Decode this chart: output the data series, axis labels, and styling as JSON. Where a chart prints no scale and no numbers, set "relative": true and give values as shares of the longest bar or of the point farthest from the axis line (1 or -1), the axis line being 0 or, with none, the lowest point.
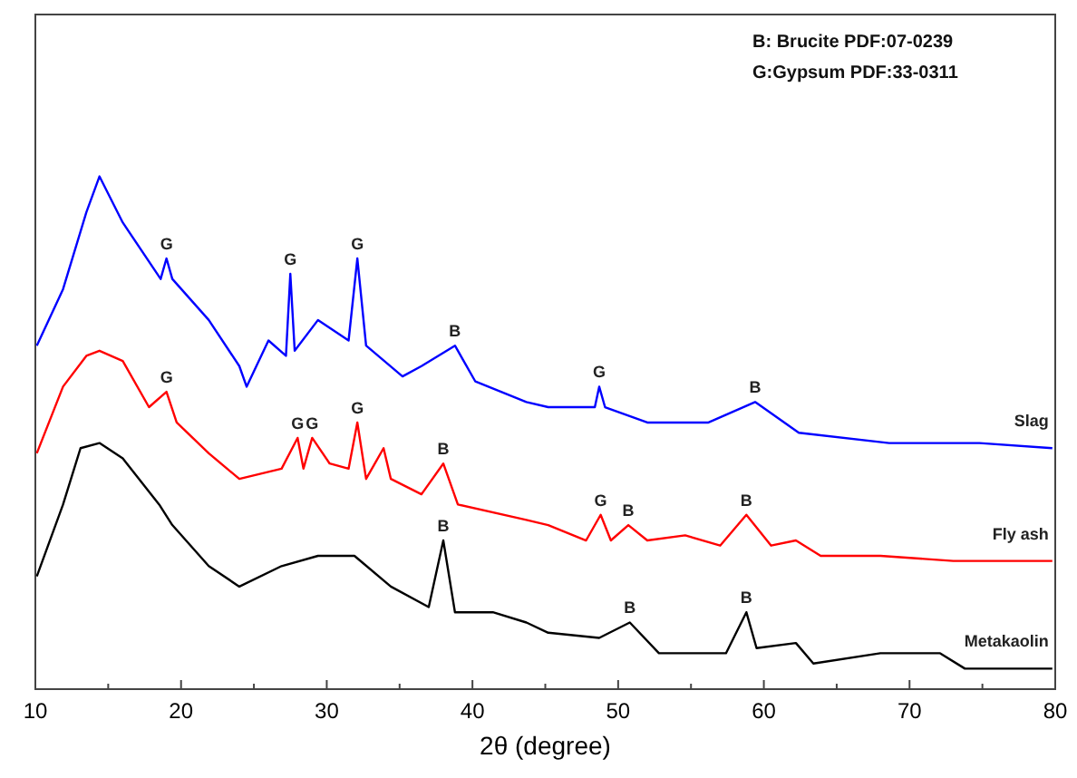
{
  "chart_data": {
    "type": "line",
    "relative": true,
    "xlabel": "2θ (degree)",
    "xlim": [
      10,
      80
    ],
    "xticks": [
      10,
      {
        "value": 15,
        "label": null
      },
      20,
      {
        "value": 25,
        "label": null
      },
      30,
      {
        "value": 35,
        "label": null
      },
      40,
      {
        "value": 45,
        "label": null
      },
      50,
      {
        "value": 55,
        "label": null
      },
      60,
      {
        "value": 65,
        "label": null
      },
      70,
      {
        "value": 75,
        "label": null
      },
      80
    ],
    "grid": false,
    "marker": "none",
    "line_style": "solid",
    "series": [
      {
        "name": "Slag",
        "color": "#0000ff",
        "x": [
          10.1,
          11.9,
          13.5,
          14.4,
          16,
          18.6,
          19,
          19.4,
          21.9,
          24,
          24.5,
          26,
          27.2,
          27.5,
          27.8,
          29.4,
          31.5,
          32.1,
          32.7,
          35.2,
          36.5,
          38.8,
          40.2,
          43.7,
          45.2,
          48.4,
          48.7,
          49.1,
          52,
          56.2,
          59.4,
          62.4,
          68.6,
          74.8,
          79.8
        ],
        "values": [
          0.67,
          0.78,
          0.93,
          1.0,
          0.91,
          0.8,
          0.84,
          0.8,
          0.72,
          0.63,
          0.59,
          0.68,
          0.65,
          0.81,
          0.66,
          0.72,
          0.68,
          0.84,
          0.67,
          0.61,
          0.63,
          0.67,
          0.6,
          0.56,
          0.55,
          0.55,
          0.59,
          0.55,
          0.52,
          0.52,
          0.56,
          0.5,
          0.48,
          0.48,
          0.47
        ]
      },
      {
        "name": "Fly ash",
        "color": "#ff0000",
        "x": [
          10.1,
          11.9,
          13.5,
          14.4,
          16,
          17.8,
          19,
          19.7,
          21.9,
          24,
          26.9,
          28,
          28.4,
          29,
          30.2,
          31.5,
          32.1,
          32.7,
          33.9,
          34.4,
          36.5,
          38,
          39,
          43.7,
          45.2,
          47.8,
          48.8,
          49.5,
          50.7,
          52,
          54.6,
          57,
          58.8,
          60.5,
          62.2,
          63.9,
          68,
          73,
          79.8
        ],
        "values": [
          0.46,
          0.59,
          0.65,
          0.66,
          0.64,
          0.55,
          0.58,
          0.52,
          0.46,
          0.41,
          0.43,
          0.49,
          0.43,
          0.49,
          0.44,
          0.43,
          0.52,
          0.41,
          0.47,
          0.41,
          0.38,
          0.44,
          0.36,
          0.33,
          0.32,
          0.29,
          0.34,
          0.29,
          0.32,
          0.29,
          0.3,
          0.28,
          0.34,
          0.28,
          0.29,
          0.26,
          0.26,
          0.25,
          0.25
        ]
      },
      {
        "name": "Metakaolin",
        "color": "#000000",
        "x": [
          10.1,
          11.9,
          13.1,
          14.4,
          16,
          18.5,
          19.4,
          21.9,
          24,
          26.9,
          29.4,
          31.9,
          34.4,
          37,
          38,
          38.8,
          41.4,
          43.7,
          45.2,
          48.7,
          50.8,
          52.8,
          57.4,
          58.8,
          59.5,
          62.2,
          63.4,
          68,
          72.1,
          73.8,
          79.8
        ],
        "values": [
          0.22,
          0.36,
          0.47,
          0.48,
          0.45,
          0.36,
          0.32,
          0.24,
          0.2,
          0.24,
          0.26,
          0.26,
          0.2,
          0.16,
          0.29,
          0.15,
          0.15,
          0.13,
          0.11,
          0.1,
          0.13,
          0.07,
          0.07,
          0.15,
          0.08,
          0.09,
          0.05,
          0.07,
          0.07,
          0.04,
          0.04
        ]
      }
    ],
    "annotations": [
      "B: Brucite PDF:07-0239",
      "G:Gypsum PDF:33-0311",
      {
        "text": "G",
        "x": 19,
        "y": 0.84
      },
      {
        "text": "G",
        "x": 27.5,
        "y": 0.81
      },
      {
        "text": "G",
        "x": 32.1,
        "y": 0.84
      },
      {
        "text": "B",
        "x": 38.8,
        "y": 0.67
      },
      {
        "text": "G",
        "x": 48.7,
        "y": 0.59
      },
      {
        "text": "B",
        "x": 59.4,
        "y": 0.56
      },
      {
        "text": "G",
        "x": 19,
        "y": 0.58
      },
      {
        "text": "G",
        "x": 28,
        "y": 0.49
      },
      {
        "text": "G",
        "x": 29,
        "y": 0.49
      },
      {
        "text": "G",
        "x": 32.1,
        "y": 0.52
      },
      {
        "text": "B",
        "x": 38,
        "y": 0.44
      },
      {
        "text": "G",
        "x": 48.8,
        "y": 0.34
      },
      {
        "text": "B",
        "x": 50.7,
        "y": 0.32
      },
      {
        "text": "B",
        "x": 58.8,
        "y": 0.34
      },
      {
        "text": "B",
        "x": 38,
        "y": 0.29
      },
      {
        "text": "B",
        "x": 50.8,
        "y": 0.13
      },
      {
        "text": "B",
        "x": 58.8,
        "y": 0.15
      }
    ]
  }
}
